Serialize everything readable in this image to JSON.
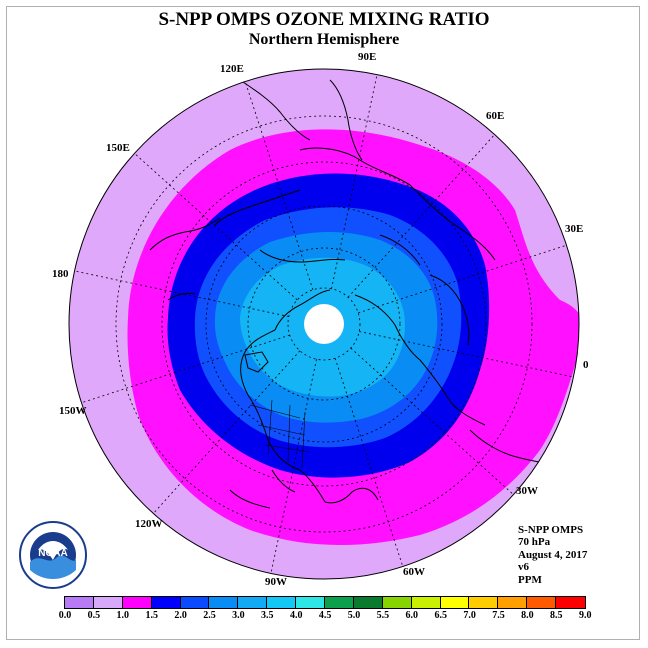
{
  "title": "S-NPP OMPS OZONE MIXING RATIO",
  "subtitle": "Northern Hemisphere",
  "longitude_labels": [
    "90E",
    "60E",
    "30E",
    "0",
    "30W",
    "60W",
    "90W",
    "120W",
    "150W",
    "180",
    "150E",
    "120E"
  ],
  "info": {
    "instrument": "S-NPP OMPS",
    "level": "70 hPa",
    "date": "August 4, 2017",
    "version": "v6",
    "units": "PPM"
  },
  "colorbar": {
    "ticks": [
      "0.0",
      "0.5",
      "1.0",
      "1.5",
      "2.0",
      "2.5",
      "3.0",
      "3.5",
      "4.0",
      "4.5",
      "5.0",
      "5.5",
      "6.0",
      "6.5",
      "7.0",
      "7.5",
      "8.0",
      "8.5",
      "9.0"
    ],
    "colors": [
      "#b77cf5",
      "#d8a8fb",
      "#ff00ff",
      "#0000ff",
      "#0a4bff",
      "#0a8cf5",
      "#12aaf5",
      "#14c8f5",
      "#2ee6e6",
      "#0ca04c",
      "#0a7a2e",
      "#88d400",
      "#c8f000",
      "#ffff00",
      "#ffcc00",
      "#ffa000",
      "#ff5a00",
      "#ff0000",
      "#8b5a3c"
    ]
  },
  "map_fill_colors": {
    "outer": "#e0a8fb",
    "band_1_0": "#ff10ff",
    "band_1_5": "#0000ee",
    "band_2_0": "#1050ff",
    "band_2_5": "#0a8cf5",
    "band_3_0": "#14b4f5",
    "pole_gap": "#ffffff"
  },
  "logo_text": "NOAA"
}
